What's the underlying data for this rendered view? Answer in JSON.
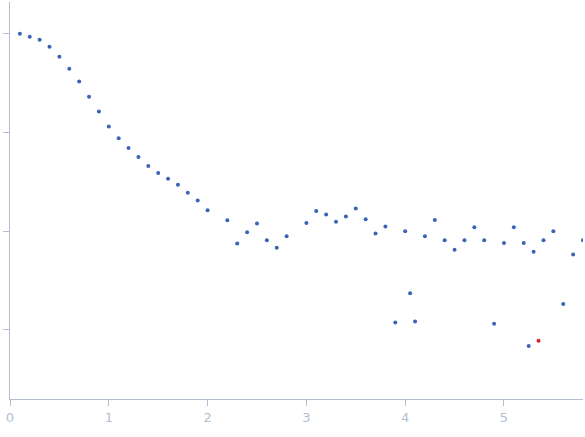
{
  "chart_data": {
    "type": "scatter",
    "log": "y",
    "grid": false,
    "tick_labels": "x",
    "marker": "circle",
    "x": [
      0.1,
      0.2,
      0.3,
      0.4,
      0.5,
      0.6,
      0.7,
      0.8,
      0.9,
      1.0,
      1.1,
      1.2,
      1.3,
      1.4,
      1.5,
      1.6,
      1.7,
      1.8,
      1.9,
      2.0,
      2.2,
      2.3,
      2.4,
      2.5,
      2.6,
      2.7,
      2.8,
      3.0,
      3.1,
      3.2,
      3.3,
      3.4,
      3.5,
      3.6,
      3.7,
      3.8,
      3.9,
      4.0,
      4.05,
      4.1,
      4.2,
      4.3,
      4.4,
      4.5,
      4.6,
      4.7,
      4.8,
      4.9,
      5.0,
      5.1,
      5.2,
      5.25,
      5.3,
      5.35,
      5.4,
      5.5,
      5.6,
      5.7,
      5.8
    ],
    "values": [
      1.0,
      0.933,
      0.87,
      0.739,
      0.586,
      0.443,
      0.329,
      0.231,
      0.163,
      0.115,
      0.0875,
      0.0696,
      0.0565,
      0.0459,
      0.039,
      0.034,
      0.0296,
      0.0246,
      0.0205,
      0.0163,
      0.0129,
      0.0075,
      0.0098,
      0.012,
      0.0081,
      0.0068,
      0.0089,
      0.0121,
      0.016,
      0.0148,
      0.0125,
      0.0141,
      0.017,
      0.0132,
      0.0095,
      0.0112,
      0.00119,
      0.01,
      0.00236,
      0.00122,
      0.0089,
      0.013,
      0.0081,
      0.0065,
      0.0081,
      0.011,
      0.0081,
      0.00116,
      0.0076,
      0.011,
      0.0076,
      0.00069,
      0.0062,
      0.00078,
      0.0081,
      0.01,
      0.00183,
      0.0058,
      0.0081
    ],
    "colors": [
      "#3a64b4",
      "#3a64b4",
      "#3a64b4",
      "#3a64b4",
      "#3a64b4",
      "#3a64b4",
      "#3a64b4",
      "#3a64b4",
      "#3a64b4",
      "#3a64b4",
      "#3a64b4",
      "#3a64b4",
      "#3a64b4",
      "#3a64b4",
      "#3a64b4",
      "#3a64b4",
      "#3a64b4",
      "#3a64b4",
      "#3a64b4",
      "#3a64b4",
      "#3a64b4",
      "#3a64b4",
      "#3a64b4",
      "#3a64b4",
      "#3a64b4",
      "#3a64b4",
      "#3a64b4",
      "#3a64b4",
      "#3a64b4",
      "#3a64b4",
      "#3a64b4",
      "#3a64b4",
      "#3a64b4",
      "#3a64b4",
      "#3a64b4",
      "#3a64b4",
      "#3a64b4",
      "#3a64b4",
      "#3a64b4",
      "#3a64b4",
      "#3a64b4",
      "#3a64b4",
      "#3a64b4",
      "#3a64b4",
      "#3a64b4",
      "#3a64b4",
      "#3a64b4",
      "#3a64b4",
      "#3a64b4",
      "#3a64b4",
      "#3a64b4",
      "#3a64b4",
      "#3a64b4",
      "#e0202a",
      "#3a64b4",
      "#3a64b4",
      "#3a64b4",
      "#3a64b4",
      "#3a64b4"
    ],
    "xlim": [
      0,
      5.8
    ],
    "xticks": [
      0,
      1,
      2,
      3,
      4,
      5
    ],
    "ylim": [
      0.0002,
      2.1
    ],
    "yticks": [
      0.001,
      0.01,
      0.1,
      1
    ]
  }
}
